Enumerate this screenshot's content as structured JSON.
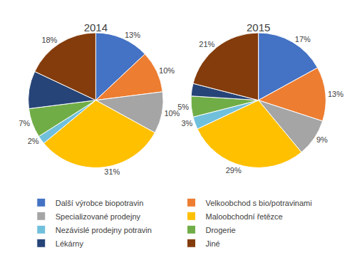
{
  "chart_data": [
    {
      "type": "pie",
      "title": "2014",
      "categories": [
        "Další výrobce biopotravin",
        "Velkoobchod s bio/potravinami",
        "Specializované prodejny",
        "Maloobchodní řetězce",
        "Nezávislé prodejny potravin",
        "Drogerie",
        "Lékárny",
        "Jiné"
      ],
      "values": [
        13,
        10,
        10,
        31,
        2,
        7,
        9,
        18
      ],
      "value_labels": [
        "13%",
        "10%",
        "10%",
        "31%",
        "2%",
        "7%",
        null,
        "18%"
      ],
      "colors": [
        "#4472C4",
        "#ED7D31",
        "#A5A5A5",
        "#FFC000",
        "#70C0DC",
        "#70AD47",
        "#264478",
        "#843C0C"
      ],
      "legend": "bottom"
    },
    {
      "type": "pie",
      "title": "2015",
      "categories": [
        "Další výrobce biopotravin",
        "Velkoobchod s bio/potravinami",
        "Specializované prodejny",
        "Maloobchodní řetězce",
        "Nezávislé prodejny potravin",
        "Drogerie",
        "Lékárny",
        "Jiné"
      ],
      "values": [
        17,
        13,
        9,
        29,
        3,
        5,
        3,
        21
      ],
      "value_labels": [
        "17%",
        "13%",
        "9%",
        "29%",
        "3%",
        "5%",
        null,
        "21%"
      ],
      "colors": [
        "#4472C4",
        "#ED7D31",
        "#A5A5A5",
        "#FFC000",
        "#70C0DC",
        "#70AD47",
        "#264478",
        "#843C0C"
      ],
      "legend": "bottom"
    }
  ]
}
